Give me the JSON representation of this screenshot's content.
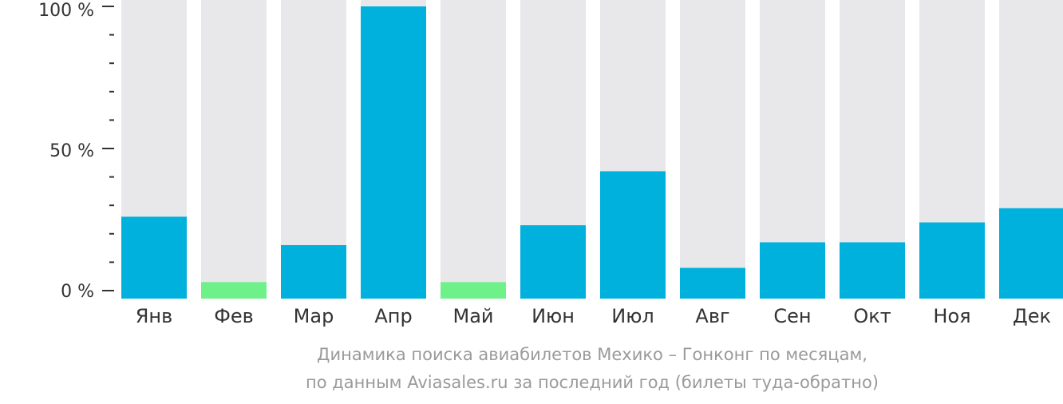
{
  "chart_data": {
    "type": "bar",
    "categories": [
      "Янв",
      "Фев",
      "Мар",
      "Апр",
      "Май",
      "Июн",
      "Июл",
      "Авг",
      "Сен",
      "Окт",
      "Ноя",
      "Дек"
    ],
    "values": [
      26,
      3,
      16,
      100,
      3,
      23,
      42,
      8,
      17,
      17,
      24,
      29
    ],
    "lowest_months": [
      "Фев",
      "Май"
    ],
    "y_ticks": [
      "0 %",
      "50 %",
      "100 %"
    ],
    "ylim": [
      0,
      100
    ],
    "caption": [
      "Динамика поиска авиабилетов Мехико – Гонконг по месяцам,",
      "по данным Aviasales.ru за последний год (билеты туда-обратно)"
    ],
    "colors": {
      "bar": "#00b0dd",
      "bar_lowest": "#6ff18a",
      "background_bar": "#e8e8ea",
      "axis": "#333333",
      "caption": "#9a9a9a"
    }
  }
}
